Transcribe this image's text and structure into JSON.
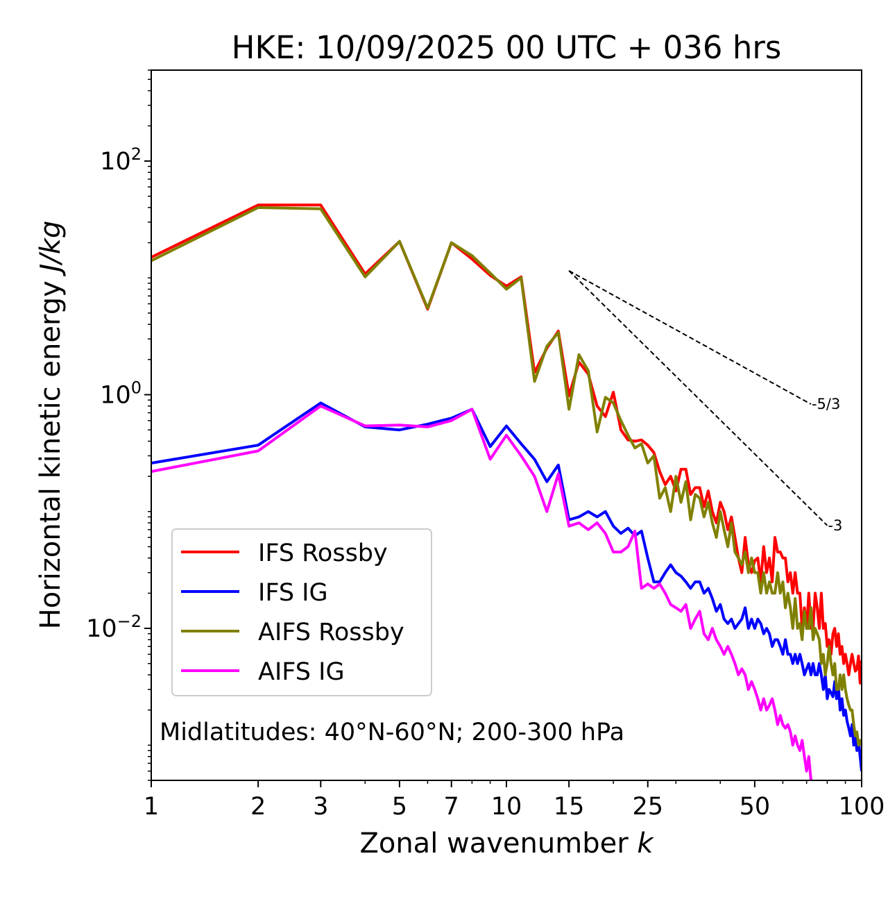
{
  "chart_data": {
    "type": "line",
    "title": "HKE: 10/09/2025 00 UTC + 036 hrs",
    "xlabel": "Zonal wavenumber",
    "xlabel_var": "k",
    "ylabel": "Horizontal kinetic energy",
    "ylabel_unit": "J/kg",
    "xscale": "log",
    "yscale": "log",
    "xlim": [
      1,
      100
    ],
    "ylim": [
      0.0005,
      600
    ],
    "x_ticks": [
      {
        "value": 1,
        "label": "1"
      },
      {
        "value": 2,
        "label": "2"
      },
      {
        "value": 3,
        "label": "3"
      },
      {
        "value": 5,
        "label": "5"
      },
      {
        "value": 7,
        "label": "7"
      },
      {
        "value": 10,
        "label": "10"
      },
      {
        "value": 15,
        "label": "15"
      },
      {
        "value": 25,
        "label": "25"
      },
      {
        "value": 50,
        "label": "50"
      },
      {
        "value": 100,
        "label": "100"
      }
    ],
    "y_ticks": [
      {
        "value": 100,
        "base": "10",
        "exp": "2"
      },
      {
        "value": 1,
        "base": "10",
        "exp": "0"
      },
      {
        "value": 0.01,
        "base": "10",
        "exp": "−2"
      }
    ],
    "legend_position": "lower-left",
    "annotation": "Midlatitudes: 40°N-60°N; 200-300 hPa",
    "reference_lines": [
      {
        "label": "-5/3",
        "slope": -1.6667,
        "x_start": 15,
        "y_start": 11.5,
        "x_end": 72,
        "y_end": 0.83
      },
      {
        "label": "-3",
        "slope": -3,
        "x_start": 15,
        "y_start": 11.5,
        "x_end": 80,
        "y_end": 0.076
      }
    ],
    "series": [
      {
        "name": "IFS Rossby",
        "color": "#ff0000",
        "x": [
          1,
          2,
          3,
          4,
          5,
          6,
          7,
          8,
          9,
          10,
          11,
          12,
          13,
          14,
          15,
          16,
          17,
          18,
          19,
          20,
          21,
          22,
          23,
          24,
          25,
          26,
          27,
          28,
          29,
          30,
          31,
          32,
          33,
          34,
          35,
          36,
          37,
          38,
          39,
          40,
          41,
          42,
          43,
          44,
          45,
          46,
          47,
          48,
          49,
          50,
          51,
          52,
          53,
          54,
          55,
          56,
          57,
          58,
          59,
          60,
          61,
          62,
          63,
          64,
          65,
          66,
          67,
          68,
          69,
          70,
          71,
          72,
          73,
          74,
          75,
          76,
          77,
          78,
          79,
          80,
          81,
          82,
          83,
          84,
          85,
          86,
          87,
          88,
          89,
          90,
          91,
          92,
          93,
          94,
          95,
          96,
          97,
          98,
          99,
          100
        ],
        "y": [
          15.0,
          42.0,
          42.0,
          10.8,
          20.5,
          5.4,
          20.0,
          14.5,
          10.5,
          8.5,
          10.2,
          1.55,
          2.5,
          3.5,
          0.98,
          1.9,
          1.5,
          0.8,
          0.65,
          1.05,
          0.5,
          0.41,
          0.4,
          0.41,
          0.37,
          0.32,
          0.22,
          0.17,
          0.2,
          0.15,
          0.23,
          0.23,
          0.14,
          0.16,
          0.16,
          0.11,
          0.15,
          0.1,
          0.08,
          0.12,
          0.1,
          0.07,
          0.09,
          0.06,
          0.04,
          0.03,
          0.06,
          0.035,
          0.03,
          0.038,
          0.04,
          0.025,
          0.05,
          0.03,
          0.04,
          0.025,
          0.06,
          0.045,
          0.045,
          0.04,
          0.04,
          0.025,
          0.03,
          0.02,
          0.03,
          0.02,
          0.02,
          0.01,
          0.015,
          0.01,
          0.02,
          0.01,
          0.01,
          0.02,
          0.015,
          0.01,
          0.02,
          0.01,
          0.011,
          0.007,
          0.008,
          0.006,
          0.009,
          0.01,
          0.007,
          0.009,
          0.006,
          0.007,
          0.005,
          0.006,
          0.005,
          0.004,
          0.005,
          0.006,
          0.005,
          0.0043,
          0.0045,
          0.0058,
          0.0034,
          0.0053
        ]
      },
      {
        "name": "IFS IG",
        "color": "#0000ff",
        "x": [
          1,
          2,
          3,
          4,
          5,
          6,
          7,
          8,
          9,
          10,
          11,
          12,
          13,
          14,
          15,
          16,
          17,
          18,
          19,
          20,
          21,
          22,
          23,
          24,
          25,
          26,
          27,
          28,
          29,
          30,
          31,
          32,
          33,
          34,
          35,
          36,
          37,
          38,
          39,
          40,
          41,
          42,
          43,
          44,
          45,
          46,
          47,
          48,
          49,
          50,
          51,
          52,
          53,
          54,
          55,
          56,
          57,
          58,
          59,
          60,
          61,
          62,
          63,
          64,
          65,
          66,
          67,
          68,
          69,
          70,
          71,
          72,
          73,
          74,
          75,
          76,
          77,
          78,
          79,
          80,
          81,
          82,
          83,
          84,
          85,
          86,
          87,
          88,
          89,
          90,
          91,
          92,
          93,
          94,
          95,
          96,
          97,
          98,
          99,
          100
        ],
        "y": [
          0.26,
          0.37,
          0.85,
          0.53,
          0.5,
          0.56,
          0.63,
          0.75,
          0.36,
          0.54,
          0.38,
          0.28,
          0.18,
          0.25,
          0.085,
          0.09,
          0.1,
          0.09,
          0.1,
          0.075,
          0.065,
          0.072,
          0.062,
          0.068,
          0.04,
          0.025,
          0.025,
          0.03,
          0.035,
          0.03,
          0.028,
          0.025,
          0.022,
          0.025,
          0.025,
          0.02,
          0.022,
          0.018,
          0.014,
          0.016,
          0.012,
          0.011,
          0.012,
          0.01,
          0.011,
          0.012,
          0.015,
          0.01,
          0.012,
          0.01,
          0.012,
          0.011,
          0.009,
          0.01,
          0.009,
          0.007,
          0.008,
          0.008,
          0.007,
          0.006,
          0.008,
          0.006,
          0.006,
          0.005,
          0.006,
          0.005,
          0.006,
          0.005,
          0.004,
          0.0045,
          0.005,
          0.004,
          0.005,
          0.004,
          0.004,
          0.005,
          0.004,
          0.003,
          0.004,
          0.0025,
          0.003,
          0.0028,
          0.0026,
          0.0035,
          0.0025,
          0.0032,
          0.002,
          0.0025,
          0.0018,
          0.002,
          0.0016,
          0.0014,
          0.0012,
          0.0015,
          0.001,
          0.0012,
          0.0009,
          0.0011,
          0.0008,
          0.0006
        ]
      },
      {
        "name": "AIFS Rossby",
        "color": "#808000",
        "x": [
          1,
          2,
          3,
          4,
          5,
          6,
          7,
          8,
          9,
          10,
          11,
          12,
          13,
          14,
          15,
          16,
          17,
          18,
          19,
          20,
          21,
          22,
          23,
          24,
          25,
          26,
          27,
          28,
          29,
          30,
          31,
          32,
          33,
          34,
          35,
          36,
          37,
          38,
          39,
          40,
          41,
          42,
          43,
          44,
          45,
          46,
          47,
          48,
          49,
          50,
          51,
          52,
          53,
          54,
          55,
          56,
          57,
          58,
          59,
          60,
          61,
          62,
          63,
          64,
          65,
          66,
          67,
          68,
          69,
          70,
          71,
          72,
          73,
          74,
          75,
          76,
          77,
          78,
          79,
          80,
          81,
          82,
          83,
          84,
          85,
          86,
          87,
          88,
          89,
          90,
          91,
          92,
          93,
          94,
          95,
          96,
          97,
          98,
          99,
          100
        ],
        "y": [
          14.0,
          40.0,
          39.0,
          10.2,
          20.5,
          5.5,
          20.0,
          15.5,
          11.0,
          8.0,
          10.0,
          1.3,
          2.6,
          3.4,
          0.75,
          2.2,
          1.6,
          0.48,
          0.95,
          0.85,
          0.6,
          0.45,
          0.35,
          0.38,
          0.26,
          0.3,
          0.13,
          0.16,
          0.1,
          0.2,
          0.12,
          0.18,
          0.085,
          0.14,
          0.13,
          0.09,
          0.12,
          0.08,
          0.06,
          0.1,
          0.07,
          0.05,
          0.08,
          0.045,
          0.04,
          0.035,
          0.045,
          0.03,
          0.04,
          0.03,
          0.03,
          0.02,
          0.03,
          0.02,
          0.025,
          0.02,
          0.02,
          0.03,
          0.02,
          0.025,
          0.015,
          0.02,
          0.015,
          0.01,
          0.018,
          0.01,
          0.011,
          0.008,
          0.014,
          0.01,
          0.01,
          0.015,
          0.008,
          0.01,
          0.009,
          0.008,
          0.005,
          0.006,
          0.004,
          0.005,
          0.007,
          0.005,
          0.004,
          0.005,
          0.003,
          0.003,
          0.004,
          0.003,
          0.004,
          0.003,
          0.0025,
          0.0022,
          0.002,
          0.002,
          0.0015,
          0.0012,
          0.0013,
          0.001,
          0.0011,
          0.001
        ]
      },
      {
        "name": "AIFS IG",
        "color": "#ff00ff",
        "x": [
          1,
          2,
          3,
          4,
          5,
          6,
          7,
          8,
          9,
          10,
          11,
          12,
          13,
          14,
          15,
          16,
          17,
          18,
          19,
          20,
          21,
          22,
          23,
          24,
          25,
          26,
          27,
          28,
          29,
          30,
          31,
          32,
          33,
          34,
          35,
          36,
          37,
          38,
          39,
          40,
          41,
          42,
          43,
          44,
          45,
          46,
          47,
          48,
          49,
          50,
          51,
          52,
          53,
          54,
          55,
          56,
          57,
          58,
          59,
          60,
          61,
          62,
          63,
          64,
          65,
          66,
          67,
          68,
          69,
          70,
          71,
          72
        ],
        "y": [
          0.22,
          0.33,
          0.8,
          0.54,
          0.55,
          0.53,
          0.6,
          0.75,
          0.28,
          0.45,
          0.3,
          0.2,
          0.1,
          0.21,
          0.075,
          0.08,
          0.07,
          0.08,
          0.065,
          0.045,
          0.045,
          0.05,
          0.068,
          0.022,
          0.024,
          0.022,
          0.024,
          0.02,
          0.016,
          0.015,
          0.014,
          0.016,
          0.01,
          0.012,
          0.014,
          0.009,
          0.008,
          0.01,
          0.008,
          0.007,
          0.006,
          0.007,
          0.006,
          0.005,
          0.004,
          0.0045,
          0.004,
          0.003,
          0.0035,
          0.003,
          0.0025,
          0.002,
          0.0025,
          0.002,
          0.0022,
          0.0025,
          0.002,
          0.0015,
          0.0018,
          0.0015,
          0.0014,
          0.0015,
          0.0013,
          0.001,
          0.0012,
          0.001,
          0.0009,
          0.0011,
          0.0008,
          0.0006,
          0.0008,
          0.0005
        ]
      }
    ]
  }
}
